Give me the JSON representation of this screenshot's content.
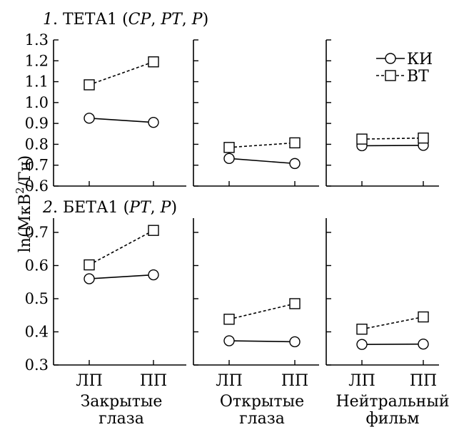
{
  "chart_data": [
    {
      "type": "line",
      "title": {
        "num": "1",
        "main": "ТЕТА1",
        "open": "(",
        "leads": [
          "CP",
          "PT",
          "P"
        ],
        "close": ")"
      },
      "ylabel": {
        "pre": "ln(МкВ",
        "sup": "2",
        "post": "/Гц)"
      },
      "ylim": [
        0.6,
        1.3
      ],
      "yticks": [
        "0.6",
        "0.7",
        "0.8",
        "0.9",
        "1.0",
        "1.1",
        "1.2",
        "1.3"
      ],
      "categories": [
        "ЛП",
        "ПП"
      ],
      "groups": [
        {
          "label": [
            "Закрытые",
            "глаза"
          ],
          "series": [
            {
              "name": "КИ",
              "values": [
                0.925,
                0.905
              ]
            },
            {
              "name": "ВТ",
              "values": [
                1.085,
                1.195
              ]
            }
          ]
        },
        {
          "label": [
            "Открытые",
            "глаза"
          ],
          "series": [
            {
              "name": "КИ",
              "values": [
                0.732,
                0.708
              ]
            },
            {
              "name": "ВТ",
              "values": [
                0.785,
                0.807
              ]
            }
          ]
        },
        {
          "label": [
            "Нейтральный",
            "фильм"
          ],
          "series": [
            {
              "name": "КИ",
              "values": [
                0.793,
                0.795
              ]
            },
            {
              "name": "ВТ",
              "values": [
                0.825,
                0.83
              ]
            }
          ]
        }
      ],
      "legend": {
        "position": "top-right",
        "items": [
          {
            "name": "КИ",
            "style": "solid",
            "marker": "circle"
          },
          {
            "name": "ВТ",
            "style": "dashed",
            "marker": "square"
          }
        ]
      }
    },
    {
      "type": "line",
      "title": {
        "num": "2",
        "main": "БЕТА1",
        "open": "(",
        "leads": [
          "PT",
          "P"
        ],
        "close": ")"
      },
      "ylim": [
        0.3,
        0.75
      ],
      "yticks": [
        "0.3",
        "0.4",
        "0.5",
        "0.6",
        "0.7"
      ],
      "categories": [
        "ЛП",
        "ПП"
      ],
      "groups": [
        {
          "label": [
            "Закрытые",
            "глаза"
          ],
          "series": [
            {
              "name": "КИ",
              "values": [
                0.56,
                0.572
              ]
            },
            {
              "name": "ВТ",
              "values": [
                0.602,
                0.706
              ]
            }
          ]
        },
        {
          "label": [
            "Открытые",
            "глаза"
          ],
          "series": [
            {
              "name": "КИ",
              "values": [
                0.373,
                0.37
              ]
            },
            {
              "name": "ВТ",
              "values": [
                0.438,
                0.485
              ]
            }
          ]
        },
        {
          "label": [
            "Нейтральный",
            "фильм"
          ],
          "series": [
            {
              "name": "КИ",
              "values": [
                0.362,
                0.363
              ]
            },
            {
              "name": "ВТ",
              "values": [
                0.408,
                0.445
              ]
            }
          ]
        }
      ]
    }
  ],
  "colors": {
    "ink": "#000000",
    "background": "#ffffff"
  }
}
